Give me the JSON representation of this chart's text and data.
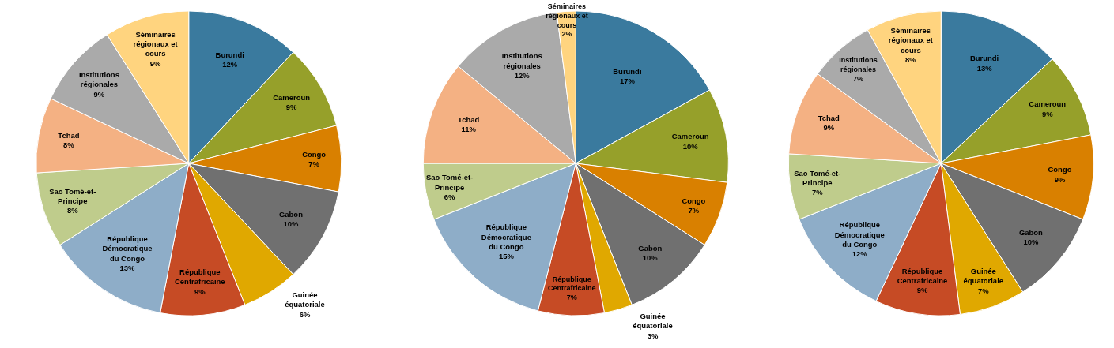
{
  "chart_data": [
    {
      "type": "pie",
      "categories": [
        "Burundi",
        "Cameroun",
        "Congo",
        "Gabon",
        "Guinée équatoriale",
        "République Centrafricaine",
        "République Démocratique du Congo",
        "Sao Tomé-et-Principe",
        "Tchad",
        "Institutions régionales",
        "Séminaires régionaux et cours"
      ],
      "values": [
        12,
        9,
        7,
        10,
        6,
        9,
        13,
        8,
        8,
        9,
        9
      ],
      "value_labels": [
        "12%",
        "9%",
        "7%",
        "10%",
        "6%",
        "9%",
        "13%",
        "8%",
        "8%",
        "9%",
        "9%"
      ],
      "colors": [
        "#3a7a9e",
        "#96a02a",
        "#d98000",
        "#707070",
        "#e0a800",
        "#c64b25",
        "#8eadc8",
        "#bfcc8c",
        "#f4b183",
        "#aaaaaa",
        "#ffd47f"
      ]
    },
    {
      "type": "pie",
      "categories": [
        "Burundi",
        "Cameroun",
        "Congo",
        "Gabon",
        "Guinée équatoriale",
        "République Centrafricaine",
        "République Démocratique du Congo",
        "Sao Tomé-et-Principe",
        "Tchad",
        "Institutions régionales",
        "Séminaires régionaux et cours"
      ],
      "values": [
        17,
        10,
        7,
        10,
        3,
        7,
        15,
        6,
        11,
        12,
        2
      ],
      "value_labels": [
        "17%",
        "10%",
        "7%",
        "10%",
        "3%",
        "7%",
        "15%",
        "6%",
        "11%",
        "12%",
        "2%"
      ],
      "colors": [
        "#3a7a9e",
        "#96a02a",
        "#d98000",
        "#707070",
        "#e0a800",
        "#c64b25",
        "#8eadc8",
        "#bfcc8c",
        "#f4b183",
        "#aaaaaa",
        "#ffd47f"
      ]
    },
    {
      "type": "pie",
      "categories": [
        "Burundi",
        "Cameroun",
        "Congo",
        "Gabon",
        "Guinée équatoriale",
        "République Centrafricaine",
        "République Démocratique du Congo",
        "Sao Tomé-et-Principe",
        "Tchad",
        "Institutions régionales",
        "Séminaires régionaux et cours"
      ],
      "values": [
        13,
        9,
        9,
        10,
        7,
        9,
        12,
        7,
        9,
        7,
        8
      ],
      "value_labels": [
        "13%",
        "9%",
        "9%",
        "10%",
        "7%",
        "9%",
        "12%",
        "7%",
        "9%",
        "7%",
        "8%"
      ],
      "colors": [
        "#3a7a9e",
        "#96a02a",
        "#d98000",
        "#707070",
        "#e0a800",
        "#c64b25",
        "#8eadc8",
        "#bfcc8c",
        "#f4b183",
        "#aaaaaa",
        "#ffd47f"
      ]
    }
  ]
}
